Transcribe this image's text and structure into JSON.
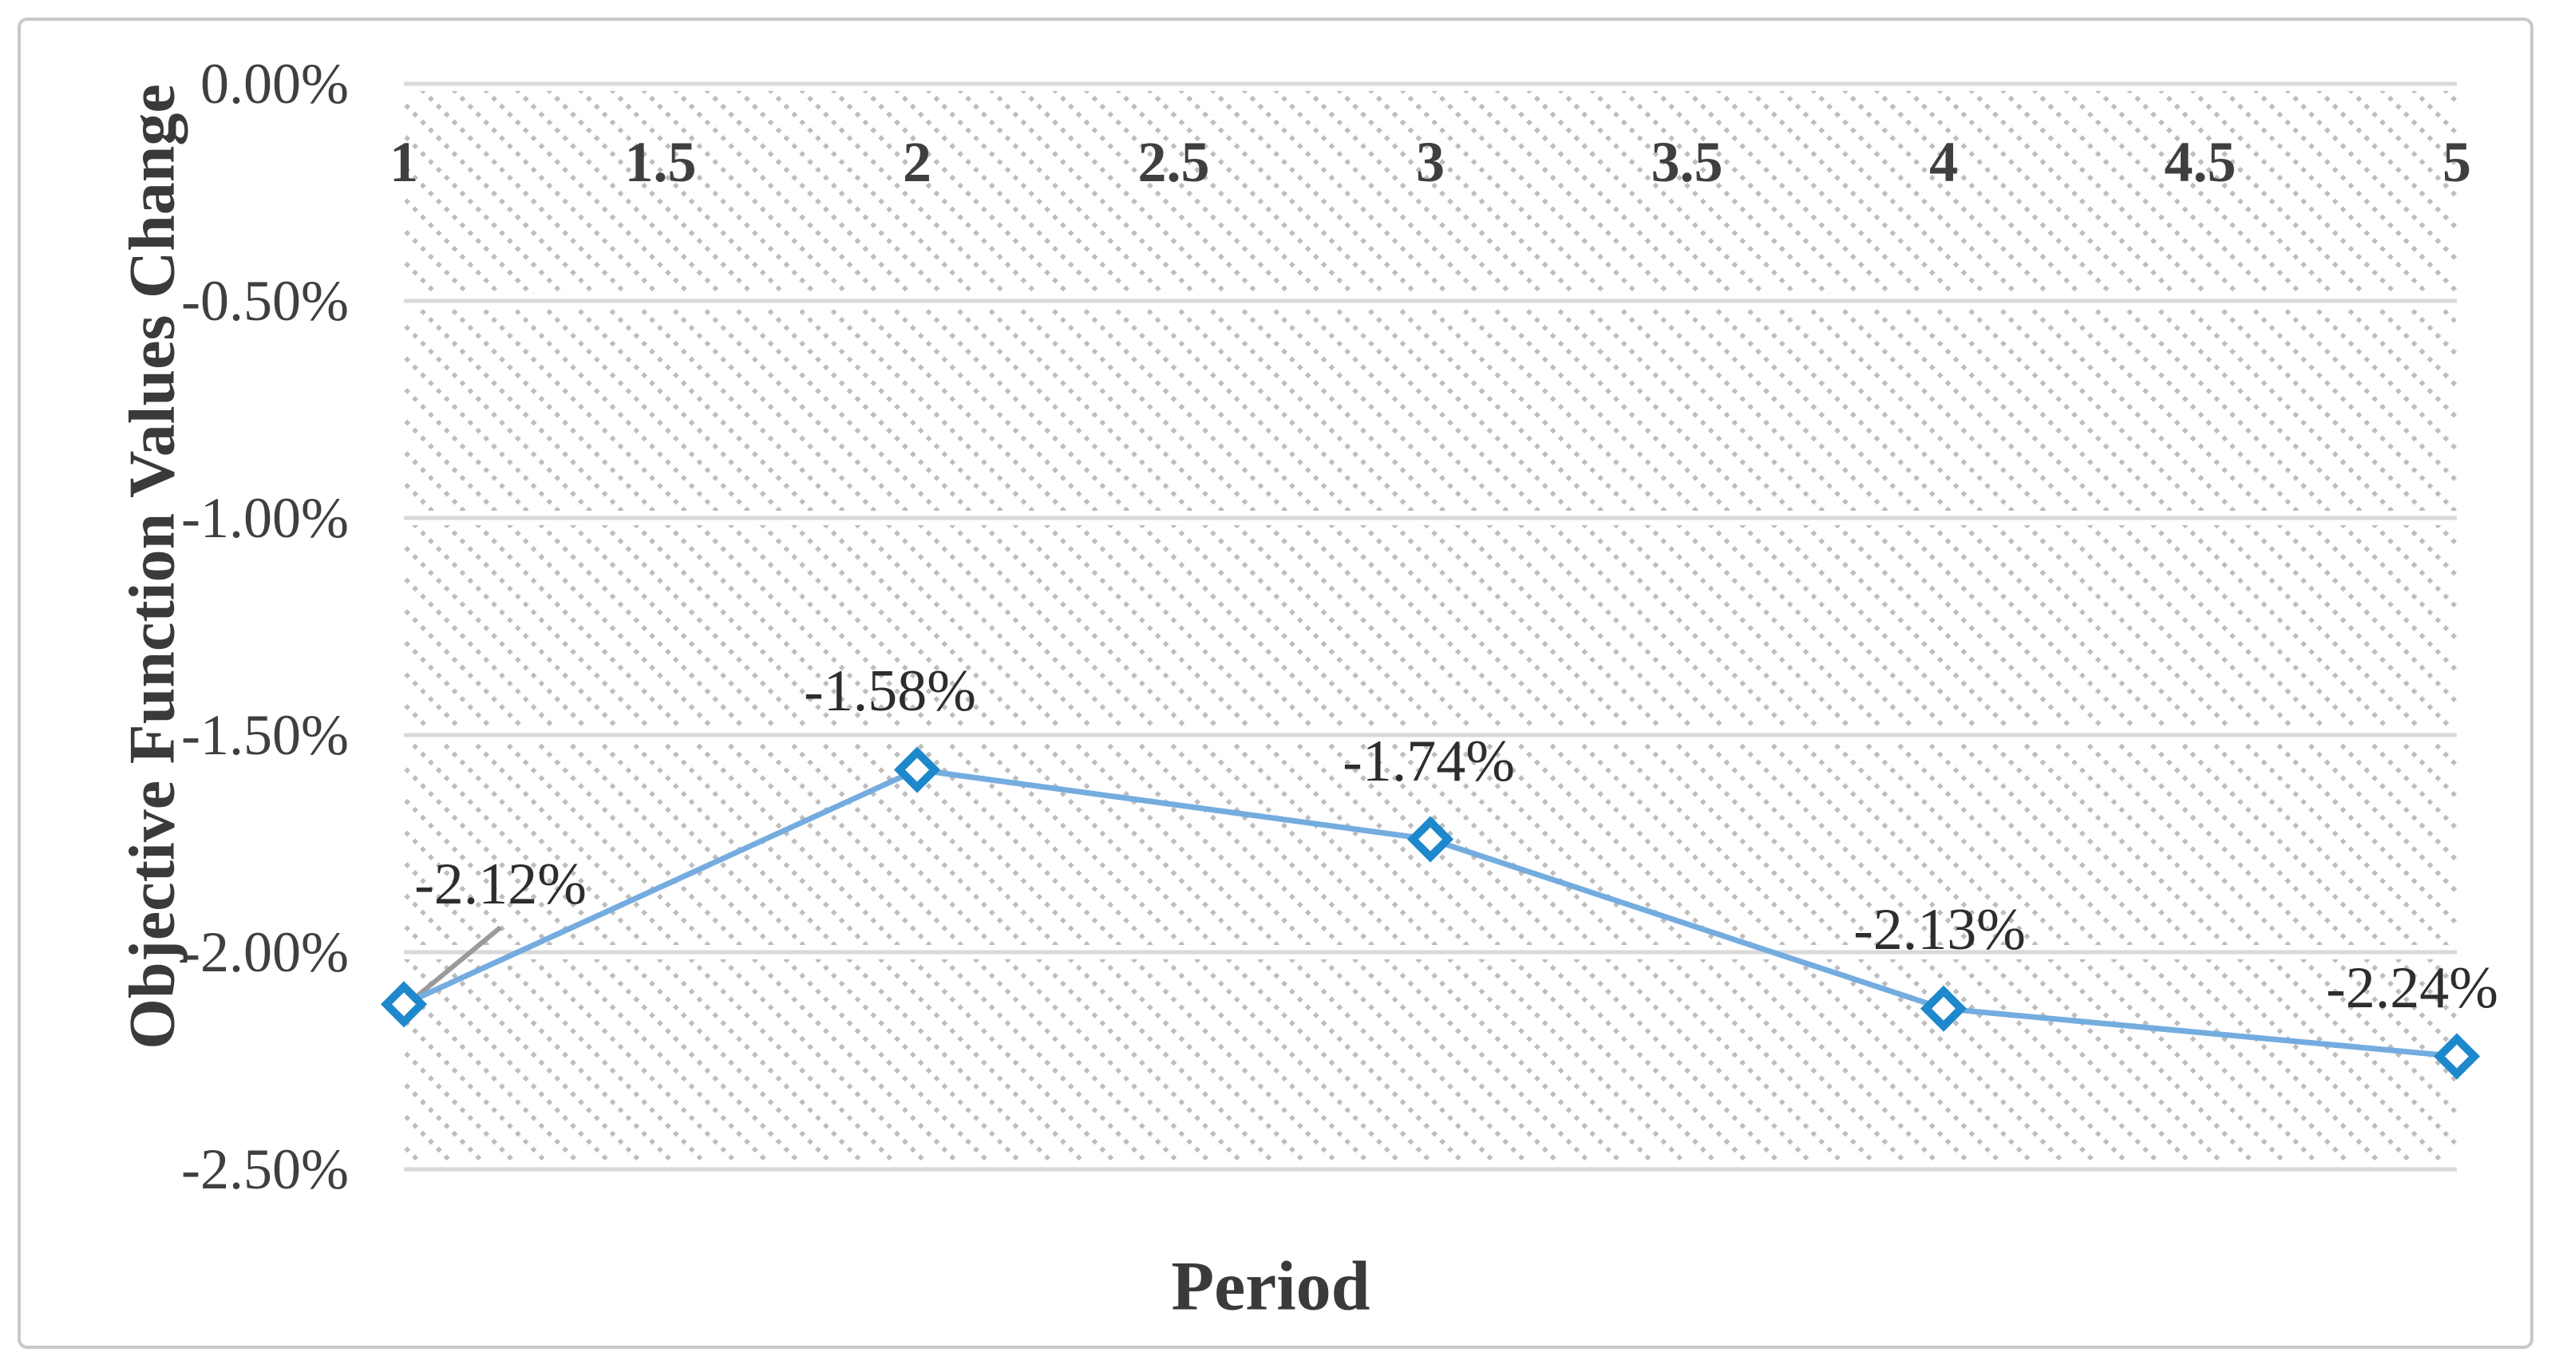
{
  "chart_data": {
    "type": "line",
    "series": [
      {
        "name": "Objective Function Values Change",
        "x": [
          1,
          2,
          3,
          4,
          5
        ],
        "y_percent": [
          -2.12,
          -1.58,
          -1.74,
          -2.13,
          -2.24
        ]
      }
    ],
    "point_labels": [
      "-2.12%",
      "-1.58%",
      "-1.74%",
      "-2.13%",
      "-2.24%"
    ],
    "x_tick_values": [
      1,
      1.5,
      2,
      2.5,
      3,
      3.5,
      4,
      4.5,
      5
    ],
    "x_tick_labels": [
      "1",
      "1.5",
      "2",
      "2.5",
      "3",
      "3.5",
      "4",
      "4.5",
      "5"
    ],
    "y_tick_values": [
      0,
      -0.5,
      -1.0,
      -1.5,
      -2.0,
      -2.5
    ],
    "y_tick_labels": [
      "0.00%",
      "-0.50%",
      "-1.00%",
      "-1.50%",
      "-2.00%",
      "-2.50%"
    ],
    "xlabel": "Period",
    "ylabel": "Objective Function Values Change",
    "xlim": [
      1,
      5
    ],
    "ylim_percent": [
      -2.5,
      0
    ],
    "grid": "horizontal",
    "legend": "none",
    "marker": "open-diamond",
    "plot_fill": "light-downward-diagonal-dotted-hatch",
    "first_label_leader_line": true,
    "colors": {
      "line": "#74acdf",
      "marker": "#1e88cc",
      "marker_fill": "#ffffff",
      "gridline": "#d9d9d9",
      "hatch_dot": "#bdbdbd",
      "tick_text": "#3f3f3f",
      "label_text": "#2d2d2d",
      "title_text": "#3a3a3a",
      "leader_line": "#9a9a9a",
      "figure_border": "#c9c9c9",
      "background": "#ffffff"
    }
  }
}
